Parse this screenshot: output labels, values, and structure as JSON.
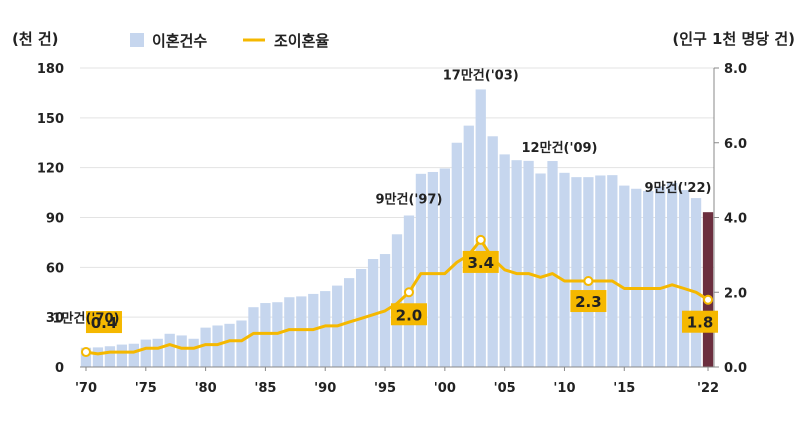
{
  "chart_data": {
    "type": "bar+line",
    "y_left_unit": "(천 건)",
    "y_right_unit": "(인구 1천 명당 건)",
    "ylim_left": [
      0,
      180
    ],
    "ylim_right": [
      0.0,
      8.0
    ],
    "y_left_ticks": [
      "0",
      "30",
      "60",
      "90",
      "120",
      "150",
      "180"
    ],
    "y_right_ticks": [
      "0.0",
      "2.0",
      "4.0",
      "6.0",
      "8.0"
    ],
    "x_tick_labels": [
      "'70",
      "'75",
      "'80",
      "'85",
      "'90",
      "'95",
      "'00",
      "'05",
      "'10",
      "'15",
      "'22"
    ],
    "x_tick_years": [
      1970,
      1975,
      1980,
      1985,
      1990,
      1995,
      2000,
      2005,
      2010,
      2015,
      2022
    ],
    "legend": [
      {
        "label": "이혼건수",
        "color": "#c6d6ee",
        "kind": "bar"
      },
      {
        "label": "조이혼율",
        "color": "#f5b800",
        "kind": "line"
      }
    ],
    "colors": {
      "bar": "#c6d6ee",
      "bar_last": "#6b2e3e",
      "line": "#f5b800",
      "rate_label_bg": "#f5b800"
    },
    "years": [
      1970,
      1971,
      1972,
      1973,
      1974,
      1975,
      1976,
      1977,
      1978,
      1979,
      1980,
      1981,
      1982,
      1983,
      1984,
      1985,
      1986,
      1987,
      1988,
      1989,
      1990,
      1991,
      1992,
      1993,
      1994,
      1995,
      1996,
      1997,
      1998,
      1999,
      2000,
      2001,
      2002,
      2003,
      2004,
      2005,
      2006,
      2007,
      2008,
      2009,
      2010,
      2011,
      2012,
      2013,
      2014,
      2015,
      2016,
      2017,
      2018,
      2019,
      2020,
      2021,
      2022
    ],
    "series": [
      {
        "name": "이혼건수",
        "kind": "bar",
        "values": [
          11.6,
          11.8,
          12.5,
          13.5,
          14.0,
          16.5,
          17.0,
          20.0,
          19.0,
          17.0,
          23.7,
          25.0,
          26.0,
          28.0,
          36.0,
          38.5,
          39.0,
          42.0,
          42.5,
          44.0,
          45.7,
          49.0,
          53.5,
          59.0,
          65.0,
          68.0,
          79.9,
          91.2,
          116.3,
          117.4,
          119.5,
          135.0,
          145.3,
          167.1,
          138.9,
          128.0,
          124.5,
          124.1,
          116.5,
          124.0,
          116.9,
          114.3,
          114.3,
          115.3,
          115.5,
          109.2,
          107.3,
          106.0,
          108.7,
          110.8,
          106.5,
          101.7,
          93.2
        ]
      },
      {
        "name": "조이혼율",
        "kind": "line",
        "values": [
          0.4,
          0.35,
          0.4,
          0.4,
          0.4,
          0.5,
          0.5,
          0.6,
          0.5,
          0.5,
          0.6,
          0.6,
          0.7,
          0.7,
          0.9,
          0.9,
          0.9,
          1.0,
          1.0,
          1.0,
          1.1,
          1.1,
          1.2,
          1.3,
          1.4,
          1.5,
          1.7,
          2.0,
          2.5,
          2.5,
          2.5,
          2.8,
          3.0,
          3.4,
          2.9,
          2.6,
          2.5,
          2.5,
          2.4,
          2.5,
          2.3,
          2.3,
          2.3,
          2.3,
          2.3,
          2.1,
          2.1,
          2.1,
          2.1,
          2.2,
          2.1,
          2.0,
          1.8
        ]
      }
    ],
    "bar_callouts": [
      {
        "text": "1만건('70)",
        "year": 1970,
        "value": 11.6
      },
      {
        "text": "9만건('97)",
        "year": 1997,
        "value": 91.2
      },
      {
        "text": "17만건('03)",
        "year": 2003,
        "value": 167.1
      },
      {
        "text": "12만건('09)",
        "year": 2009,
        "value": 124.0
      },
      {
        "text": "9만건('22)",
        "year": 2022,
        "value": 93.2
      }
    ],
    "rate_callouts": [
      {
        "text": "0.4",
        "year": 1970,
        "value": 0.4
      },
      {
        "text": "2.0",
        "year": 1997,
        "value": 2.0
      },
      {
        "text": "3.4",
        "year": 2003,
        "value": 3.4
      },
      {
        "text": "2.3",
        "year": 2012,
        "value": 2.3
      },
      {
        "text": "1.8",
        "year": 2022,
        "value": 1.8
      }
    ]
  }
}
